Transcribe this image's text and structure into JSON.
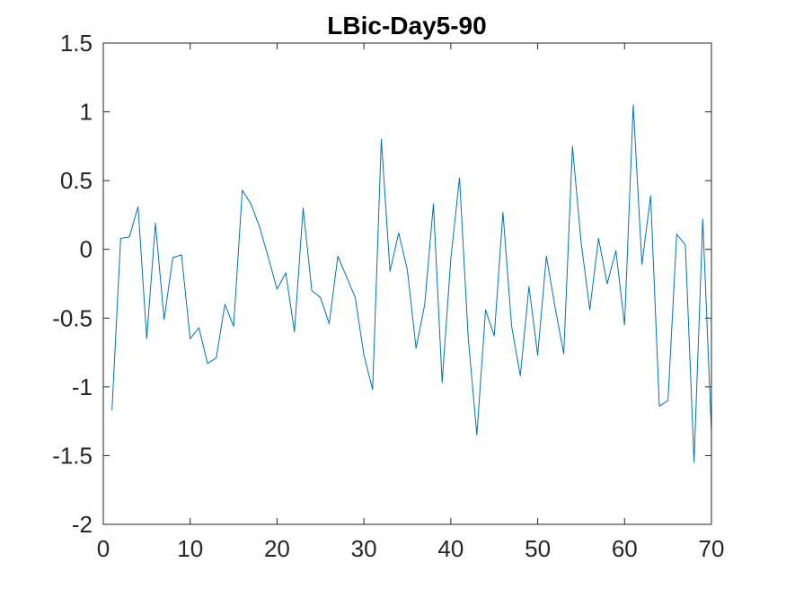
{
  "chart_data": {
    "type": "line",
    "title": "LBic-Day5-90",
    "xlabel": "",
    "ylabel": "",
    "xlim": [
      0,
      70
    ],
    "ylim": [
      -2,
      1.5
    ],
    "x_ticks": [
      0,
      10,
      20,
      30,
      40,
      50,
      60,
      70
    ],
    "y_ticks": [
      -2,
      -1.5,
      -1,
      -0.5,
      0,
      0.5,
      1,
      1.5
    ],
    "x_tick_labels": [
      "0",
      "10",
      "20",
      "30",
      "40",
      "50",
      "60",
      "70"
    ],
    "y_tick_labels": [
      "-2",
      "-1.5",
      "-1",
      "-0.5",
      "0",
      "0.5",
      "1",
      "1.5"
    ],
    "grid": false,
    "line_color": "#0072BD",
    "series": [
      {
        "x": [
          1,
          2,
          3,
          4,
          5,
          6,
          7,
          8,
          9,
          10,
          11,
          12,
          13,
          14,
          15,
          16,
          17,
          18,
          19,
          20,
          21,
          22,
          23,
          24,
          25,
          26,
          27,
          28,
          29,
          30,
          31,
          32,
          33,
          34,
          35,
          36,
          37,
          38,
          39,
          40,
          41,
          42,
          43,
          44,
          45,
          46,
          47,
          48,
          49,
          50,
          51,
          52,
          53,
          54,
          55,
          56,
          57,
          58,
          59,
          60,
          61,
          62,
          63,
          64,
          65,
          66,
          67,
          68,
          69,
          70
        ],
        "y": [
          -1.17,
          0.08,
          0.09,
          0.31,
          -0.65,
          0.19,
          -0.51,
          -0.06,
          -0.04,
          -0.65,
          -0.57,
          -0.83,
          -0.79,
          -0.4,
          -0.56,
          0.43,
          0.33,
          0.16,
          -0.06,
          -0.29,
          -0.17,
          -0.6,
          0.3,
          -0.3,
          -0.35,
          -0.54,
          -0.05,
          -0.2,
          -0.35,
          -0.77,
          -1.02,
          0.8,
          -0.16,
          0.12,
          -0.15,
          -0.72,
          -0.4,
          0.33,
          -0.97,
          -0.07,
          0.52,
          -0.64,
          -1.35,
          -0.44,
          -0.63,
          0.27,
          -0.56,
          -0.92,
          -0.27,
          -0.77,
          -0.05,
          -0.42,
          -0.76,
          0.75,
          0.05,
          -0.44,
          0.08,
          -0.25,
          -0.01,
          -0.55,
          1.05,
          -0.11,
          0.39,
          -1.14,
          -1.1,
          0.11,
          0.03,
          -1.55,
          0.22,
          -1.33
        ]
      }
    ]
  }
}
